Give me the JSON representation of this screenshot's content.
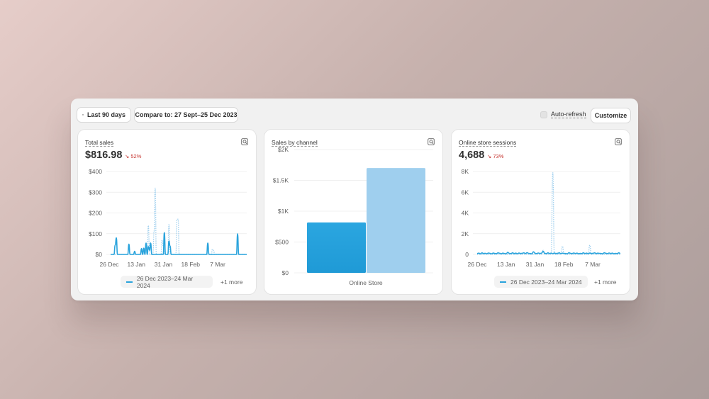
{
  "toolbar": {
    "date_range_label": "Last 90 days",
    "compare_label": "Compare to: 27 Sept–25 Dec 2023",
    "auto_refresh_label": "Auto-refresh",
    "customize_label": "Customize"
  },
  "colors": {
    "primary": "#29a3dc",
    "compare": "#9fcfee",
    "negative": "#c4302b"
  },
  "cards": {
    "total_sales": {
      "title": "Total sales",
      "value": "$816.98",
      "delta": "52%",
      "delta_icon": "trend-down-arrow-icon",
      "legend_label": "26 Dec 2023–24 Mar 2024",
      "more_label": "+1 more"
    },
    "sales_by_channel": {
      "title": "Sales by channel"
    },
    "sessions": {
      "title": "Online store sessions",
      "value": "4,688",
      "delta": "73%",
      "delta_icon": "trend-down-arrow-icon",
      "legend_label": "26 Dec 2023–24 Mar 2024",
      "more_label": "+1 more"
    }
  },
  "chart_data": [
    {
      "type": "line",
      "ylim": [
        0,
        400
      ],
      "yticks": [
        "$0",
        "$100",
        "$200",
        "$300",
        "$400"
      ],
      "xticks": [
        "26 Dec",
        "13 Jan",
        "31 Jan",
        "18 Feb",
        "7 Mar"
      ],
      "grid": true,
      "series": [
        {
          "name": "26 Dec 2023–24 Mar 2024",
          "style": "solid",
          "values": [
            0,
            0,
            0,
            0,
            45,
            80,
            0,
            0,
            0,
            0,
            0,
            0,
            0,
            0,
            0,
            0,
            50,
            0,
            0,
            0,
            0,
            15,
            0,
            0,
            0,
            0,
            0,
            28,
            0,
            30,
            0,
            55,
            0,
            38,
            20,
            55,
            0,
            0,
            0,
            0,
            0,
            0,
            0,
            0,
            0,
            0,
            0,
            105,
            0,
            0,
            0,
            65,
            40,
            0,
            0,
            0,
            0,
            0,
            0,
            0,
            0,
            0,
            0,
            0,
            0,
            0,
            0,
            0,
            0,
            0,
            0,
            0,
            0,
            0,
            0,
            0,
            0,
            0,
            0,
            0,
            0,
            0,
            0,
            0,
            0,
            55,
            0,
            0,
            0,
            0,
            0,
            0,
            0,
            0,
            0,
            0,
            0,
            0,
            0,
            0,
            0,
            0,
            0,
            0,
            0,
            0,
            0,
            0,
            0,
            0,
            0,
            100,
            0,
            0,
            0,
            0,
            0,
            0,
            0,
            0
          ]
        },
        {
          "name": "compare",
          "style": "dotted",
          "values": [
            0,
            0,
            0,
            0,
            0,
            0,
            0,
            0,
            0,
            0,
            0,
            0,
            0,
            0,
            0,
            0,
            0,
            0,
            0,
            0,
            0,
            0,
            0,
            0,
            0,
            0,
            0,
            0,
            0,
            0,
            0,
            0,
            0,
            140,
            0,
            0,
            0,
            0,
            110,
            320,
            0,
            0,
            0,
            0,
            0,
            70,
            40,
            0,
            0,
            0,
            0,
            145,
            0,
            0,
            0,
            0,
            0,
            0,
            170,
            170,
            0,
            0,
            0,
            0,
            0,
            0,
            0,
            0,
            0,
            0,
            0,
            0,
            0,
            0,
            0,
            0,
            0,
            0,
            0,
            0,
            0,
            0,
            0,
            0,
            0,
            0,
            0,
            0,
            0,
            25,
            20,
            0,
            0,
            0,
            0,
            0,
            0,
            0,
            0,
            0,
            0,
            0,
            0,
            0,
            0,
            0,
            0,
            0,
            0,
            0,
            0,
            0,
            0,
            0,
            0,
            0,
            0,
            0,
            0,
            0
          ]
        }
      ]
    },
    {
      "type": "bar",
      "categories": [
        "Online Store"
      ],
      "ylim": [
        0,
        2000
      ],
      "yticks": [
        "$0",
        "$500",
        "$1K",
        "$1.5K",
        "$2K"
      ],
      "series": [
        {
          "name": "current",
          "values": [
            816.98
          ]
        },
        {
          "name": "compare",
          "values": [
            1700
          ]
        }
      ]
    },
    {
      "type": "line",
      "ylim": [
        0,
        8000
      ],
      "yticks": [
        "0",
        "2K",
        "4K",
        "6K",
        "8K"
      ],
      "xticks": [
        "26 Dec",
        "13 Jan",
        "31 Jan",
        "18 Feb",
        "7 Mar"
      ],
      "grid": true,
      "series": [
        {
          "name": "26 Dec 2023–24 Mar 2024",
          "style": "solid",
          "values": [
            80,
            120,
            60,
            150,
            90,
            110,
            70,
            140,
            100,
            60,
            130,
            90,
            80,
            150,
            110,
            70,
            120,
            90,
            60,
            200,
            100,
            80,
            150,
            90,
            120,
            70,
            130,
            90,
            110,
            150,
            80,
            170,
            100,
            90,
            70,
            250,
            110,
            80,
            140,
            90,
            120,
            300,
            100,
            80,
            150,
            90,
            120,
            70,
            130,
            90,
            110,
            150,
            80,
            120,
            100,
            90,
            70,
            160,
            110,
            80,
            140,
            90,
            120,
            70,
            100,
            80,
            150,
            90,
            120,
            70,
            130,
            90,
            110,
            150,
            80,
            120,
            100,
            90,
            70,
            160,
            110,
            80,
            140,
            90,
            120,
            70,
            100,
            80,
            150,
            90
          ]
        },
        {
          "name": "compare",
          "style": "dotted",
          "values": [
            0,
            0,
            0,
            0,
            0,
            0,
            0,
            0,
            0,
            0,
            0,
            0,
            0,
            0,
            0,
            0,
            0,
            0,
            0,
            0,
            0,
            0,
            0,
            0,
            0,
            0,
            0,
            0,
            0,
            0,
            0,
            0,
            0,
            0,
            0,
            0,
            0,
            0,
            0,
            0,
            0,
            400,
            0,
            0,
            0,
            0,
            0,
            7900,
            0,
            0,
            0,
            0,
            0,
            800,
            0,
            0,
            0,
            0,
            0,
            0,
            0,
            0,
            0,
            0,
            0,
            0,
            0,
            0,
            0,
            0,
            900,
            0,
            0,
            0,
            0,
            0,
            0,
            0,
            0,
            0,
            0,
            0,
            0,
            0,
            0,
            0,
            0,
            0,
            0,
            0
          ]
        }
      ]
    }
  ]
}
